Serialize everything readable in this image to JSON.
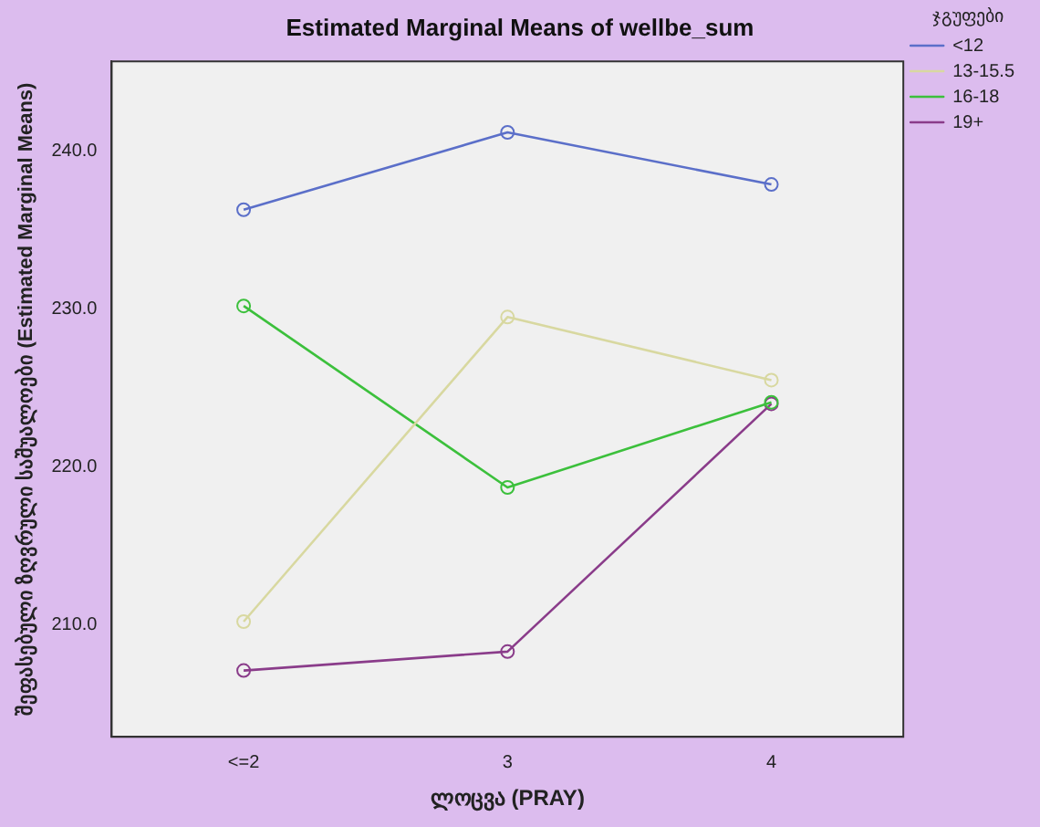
{
  "chart_data": {
    "type": "line",
    "title": "Estimated Marginal Means of wellbe_sum",
    "xlabel": "ლოცვა (PRAY)",
    "ylabel": "შეფასებული ზღვრული საშუალოები (Estimated Marginal Means)",
    "legend_title": "ჯგუფები",
    "categories": [
      "<=2",
      "3",
      "4"
    ],
    "series": [
      {
        "name": "<12",
        "color": "#5b6fc9",
        "values": [
          236.3,
          241.2,
          237.9
        ]
      },
      {
        "name": "13-15.5",
        "color": "#d8d8a0",
        "values": [
          210.2,
          229.5,
          225.5
        ]
      },
      {
        "name": "16-18",
        "color": "#3cc03c",
        "values": [
          230.2,
          218.7,
          224.1
        ]
      },
      {
        "name": "19+",
        "color": "#8a3c8a",
        "values": [
          207.1,
          208.3,
          224.0
        ]
      }
    ],
    "ylim": [
      202.9,
      245.7
    ],
    "yticks": [
      {
        "value": 210,
        "label": "210.0"
      },
      {
        "value": 220,
        "label": "220.0"
      },
      {
        "value": 230,
        "label": "230.0"
      },
      {
        "value": 240,
        "label": "240.0"
      }
    ],
    "legend": "top right",
    "marker": "circle",
    "grid": false
  }
}
